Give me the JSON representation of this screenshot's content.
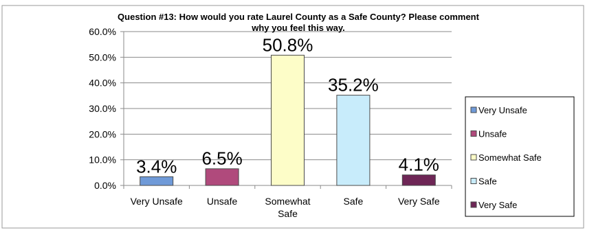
{
  "chart_data": {
    "type": "bar",
    "title": "Question #13: How would you rate Laurel County as a Safe County? Please comment why you feel this way.",
    "title_lines": [
      "Question #13: How would you rate Laurel County as a Safe County? Please comment",
      "why you feel this way."
    ],
    "categories": [
      "Very Unsafe",
      "Unsafe",
      "Somewhat Safe",
      "Safe",
      "Very Safe"
    ],
    "category_label_lines": [
      [
        "Very Unsafe"
      ],
      [
        "Unsafe"
      ],
      [
        "Somewhat",
        "Safe"
      ],
      [
        "Safe"
      ],
      [
        "Very Safe"
      ]
    ],
    "values": [
      3.4,
      6.5,
      50.8,
      35.2,
      4.1
    ],
    "data_labels": [
      "3.4%",
      "6.5%",
      "50.8%",
      "35.2%",
      "4.1%"
    ],
    "colors": [
      "#6f9ad8",
      "#b04a7c",
      "#fdfdc8",
      "#c8ecfb",
      "#6e2656"
    ],
    "ylim": [
      0,
      60
    ],
    "yticks": [
      0,
      10,
      20,
      30,
      40,
      50,
      60
    ],
    "ytick_labels": [
      "0.0%",
      "10.0%",
      "20.0%",
      "30.0%",
      "40.0%",
      "50.0%",
      "60.0%"
    ],
    "xlabel": "",
    "ylabel": "",
    "grid": true,
    "legend": {
      "placement": "right",
      "entries": [
        "Very Unsafe",
        "Unsafe",
        "Somewhat Safe",
        "Safe",
        "Very Safe"
      ]
    }
  }
}
